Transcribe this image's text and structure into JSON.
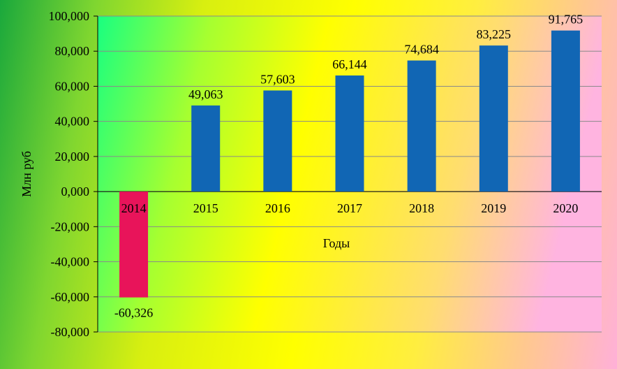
{
  "chart_data": {
    "type": "bar",
    "categories": [
      "2014",
      "2015",
      "2016",
      "2017",
      "2018",
      "2019",
      "2020"
    ],
    "values": [
      -60.326,
      49.063,
      57.603,
      66.144,
      74.684,
      83.225,
      91.765
    ],
    "data_labels": [
      "-60,326",
      "49,063",
      "57,603",
      "66,144",
      "74,684",
      "83,225",
      "91,765"
    ],
    "y_ticks": [
      -80,
      -60,
      -40,
      -20,
      0,
      20,
      40,
      60,
      80,
      100
    ],
    "y_tick_labels": [
      "-80,000",
      "-60,000",
      "-40,000",
      "-20,000",
      "0,000",
      "20,000",
      "40,000",
      "60,000",
      "80,000",
      "100,000"
    ],
    "ylim": [
      -80,
      100
    ],
    "xlabel": "Годы",
    "ylabel": "Млн руб",
    "grid": true,
    "colors": {
      "positive": "#1166b4",
      "negative": "#e8145a",
      "plot_bg_start": "#19ff80",
      "plot_bg_mid": "#ffff00",
      "plot_bg_end": "#ffb4e0"
    }
  }
}
